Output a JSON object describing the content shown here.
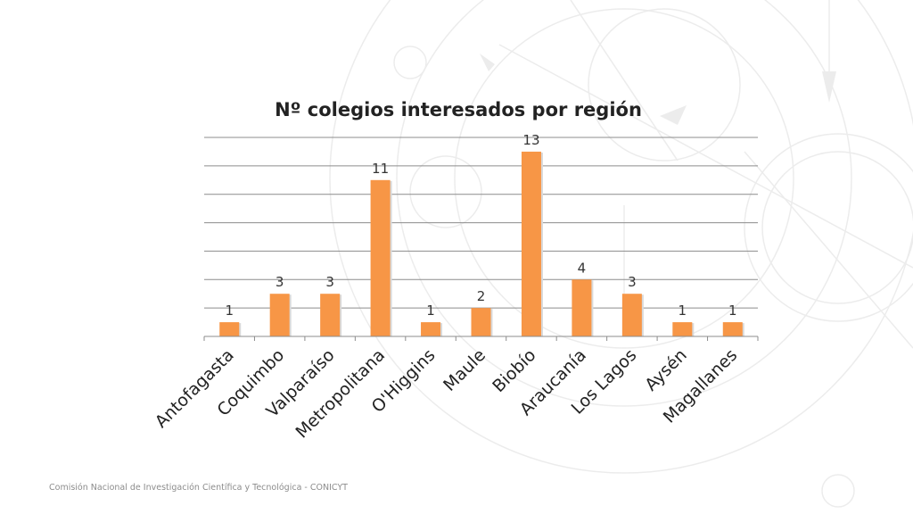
{
  "chart_data": {
    "type": "bar",
    "title": "Nº colegios interesados por región",
    "categories": [
      "Antofagasta",
      "Coquimbo",
      "Valparaíso",
      "Metropolitana",
      "O'Higgins",
      "Maule",
      "Biobío",
      "Araucanía",
      "Los Lagos",
      "Aysén",
      "Magallanes"
    ],
    "values": [
      1,
      3,
      3,
      11,
      1,
      2,
      13,
      4,
      3,
      1,
      1
    ],
    "xlabel": "",
    "ylabel": "",
    "ylim": [
      0,
      14
    ],
    "yticks_shown": false,
    "grid": true,
    "legend": "none",
    "data_labels": true,
    "bar_color": "#F79646",
    "grid_color": "#8C8C8C"
  },
  "footer": {
    "text": "Comisión Nacional de Investigación Científica y Tecnológica - CONICYT"
  },
  "background": {
    "decoration": "faint-compass-rose-watermark",
    "line_color": "#EBEBEB"
  }
}
